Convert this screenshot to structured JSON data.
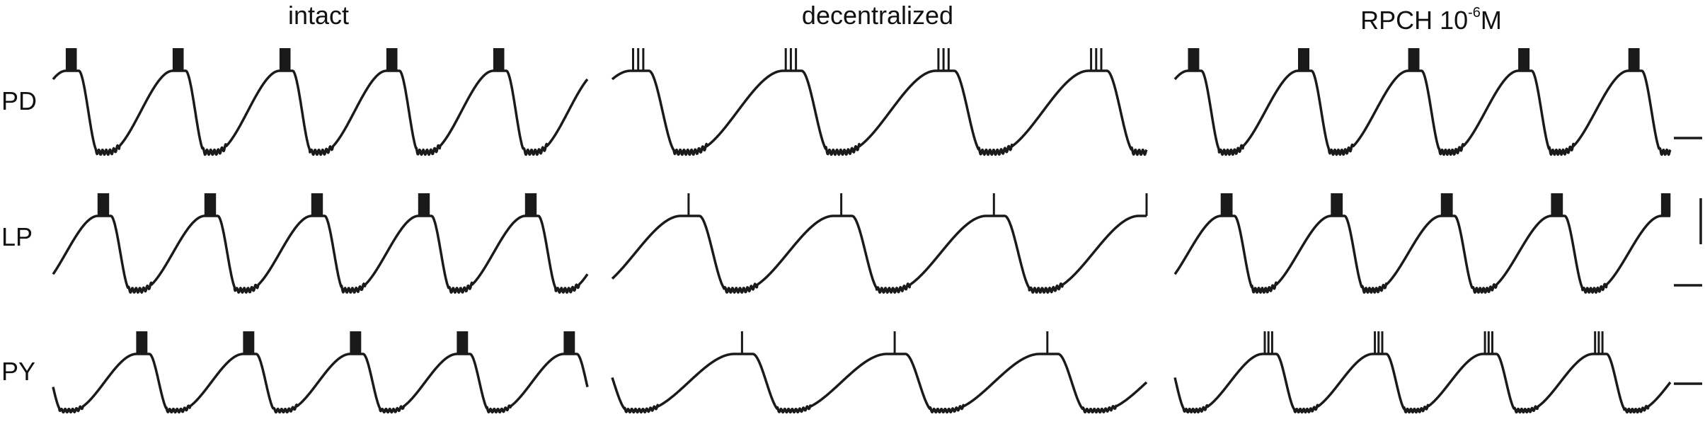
{
  "chart_data": {
    "type": "line",
    "title": "",
    "xlabel": "",
    "ylabel": "",
    "columns": [
      {
        "id": "intact",
        "title": "intact",
        "title_sup": ""
      },
      {
        "id": "decentralized",
        "title": "decentralized",
        "title_sup": ""
      },
      {
        "id": "rpch",
        "title_pre": "RPCH 10",
        "title_sup": "-6",
        "title_post": "M"
      }
    ],
    "rows": [
      {
        "id": "pd",
        "label": "PD"
      },
      {
        "id": "lp",
        "label": "LP"
      },
      {
        "id": "py",
        "label": "PY"
      }
    ],
    "series": {
      "intact": {
        "pd": {
          "cycles": 5,
          "burst_phase": 0.12,
          "spikes": 6
        },
        "lp": {
          "cycles": 5,
          "burst_phase": 0.42,
          "spikes": 9
        },
        "py": {
          "cycles": 5,
          "burst_phase": 0.78,
          "spikes": 7
        }
      },
      "decentralized": {
        "pd": {
          "cycles": 3.5,
          "burst_phase": 0.12,
          "spikes": 3
        },
        "lp": {
          "cycles": 3.5,
          "burst_phase": 0.45,
          "spikes": 1
        },
        "py": {
          "cycles": 3.5,
          "burst_phase": 0.8,
          "spikes": 1
        }
      },
      "rpch": {
        "pd": {
          "cycles": 4.5,
          "burst_phase": 0.12,
          "spikes": 6
        },
        "lp": {
          "cycles": 4.5,
          "burst_phase": 0.42,
          "spikes": 9
        },
        "py": {
          "cycles": 4.5,
          "burst_phase": 0.8,
          "spikes": 3
        }
      }
    },
    "scale_bars": {
      "time": "horizontal bar",
      "voltage": "vertical bar",
      "zero_level": "horizontal markers"
    },
    "color": "#1a1a1a"
  }
}
